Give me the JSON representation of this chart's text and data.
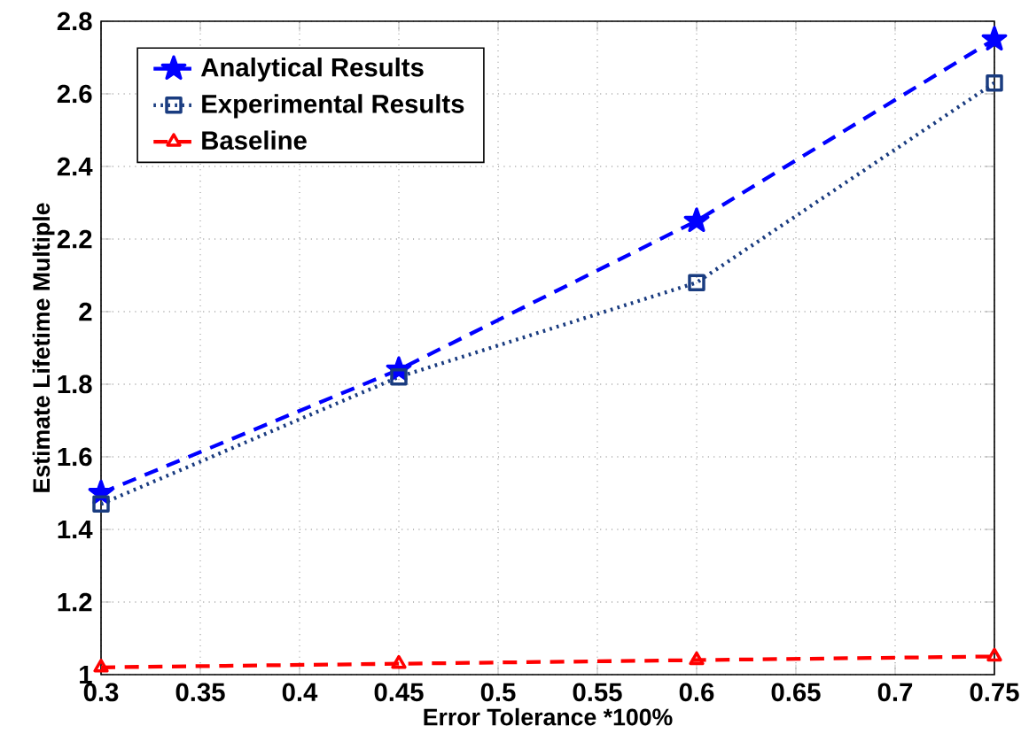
{
  "chart_data": {
    "type": "line",
    "xlabel": "Error Tolerance *100%",
    "ylabel": "Estimate Lifetime Multiple",
    "x": [
      0.3,
      0.45,
      0.6,
      0.75
    ],
    "series": [
      {
        "name": "Analytical Results",
        "color": "#0000ff",
        "marker": "star",
        "line_style": "dashed",
        "values": [
          1.5,
          1.84,
          2.25,
          2.75
        ]
      },
      {
        "name": "Experimental Results",
        "color": "#1a3c80",
        "marker": "square",
        "line_style": "dotted",
        "values": [
          1.47,
          1.82,
          2.08,
          2.63
        ]
      },
      {
        "name": "Baseline",
        "color": "#ff0000",
        "marker": "triangle",
        "line_style": "dashed",
        "values": [
          1.02,
          1.03,
          1.04,
          1.05
        ]
      }
    ],
    "xlim": [
      0.3,
      0.75
    ],
    "xticks": [
      0.3,
      0.35,
      0.4,
      0.45,
      0.5,
      0.55,
      0.6,
      0.65,
      0.7,
      0.75
    ],
    "ylim": [
      1,
      2.8
    ],
    "yticks": [
      1,
      1.2,
      1.4,
      1.6,
      1.8,
      2,
      2.2,
      2.4,
      2.6,
      2.8
    ],
    "grid": true,
    "legend": "top left"
  }
}
